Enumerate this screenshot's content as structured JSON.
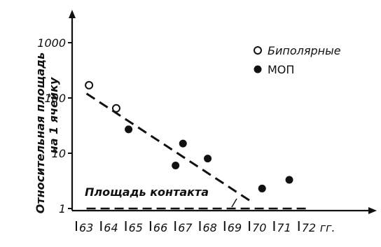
{
  "chart_data": {
    "type": "scatter",
    "ylabel_lines": [
      "Относительная площадь",
      "на 1 ячейку"
    ],
    "xlabel": "",
    "x_unit": "гг.",
    "y_scale": "log",
    "ylim": [
      1,
      1000
    ],
    "xlim": [
      63,
      72
    ],
    "yticks": [
      {
        "value": 1,
        "label": "1"
      },
      {
        "value": 10,
        "label": "10"
      },
      {
        "value": 100,
        "label": "100"
      },
      {
        "value": 1000,
        "label": "1000"
      }
    ],
    "xticks": [
      {
        "value": 63,
        "label": "63"
      },
      {
        "value": 64,
        "label": "64"
      },
      {
        "value": 65,
        "label": "65"
      },
      {
        "value": 66,
        "label": "66"
      },
      {
        "value": 67,
        "label": "67"
      },
      {
        "value": 68,
        "label": "68"
      },
      {
        "value": 69,
        "label": "69"
      },
      {
        "value": 70,
        "label": "70"
      },
      {
        "value": 71,
        "label": "71"
      },
      {
        "value": 72,
        "label": "72"
      }
    ],
    "series": [
      {
        "name": "Биполярные",
        "marker": "open-circle",
        "points": [
          {
            "x": 63.4,
            "y": 170
          },
          {
            "x": 64.5,
            "y": 65
          }
        ]
      },
      {
        "name": "МОП",
        "marker": "filled-circle",
        "points": [
          {
            "x": 65.0,
            "y": 27
          },
          {
            "x": 66.9,
            "y": 6
          },
          {
            "x": 67.2,
            "y": 15
          },
          {
            "x": 68.2,
            "y": 8
          },
          {
            "x": 70.4,
            "y": 2.3
          },
          {
            "x": 71.5,
            "y": 3.3
          }
        ]
      }
    ],
    "trend_line": {
      "style": "dashed",
      "from": {
        "x": 63.3,
        "y": 120
      },
      "to": {
        "x": 70.0,
        "y": 1.3
      }
    },
    "reference_line": {
      "style": "dashed",
      "y": 1,
      "x_from": 63.3,
      "x_to": 72.3
    },
    "annotation": {
      "text": "Площадь контакта",
      "target_x": 69.4,
      "target_y": 1
    }
  }
}
